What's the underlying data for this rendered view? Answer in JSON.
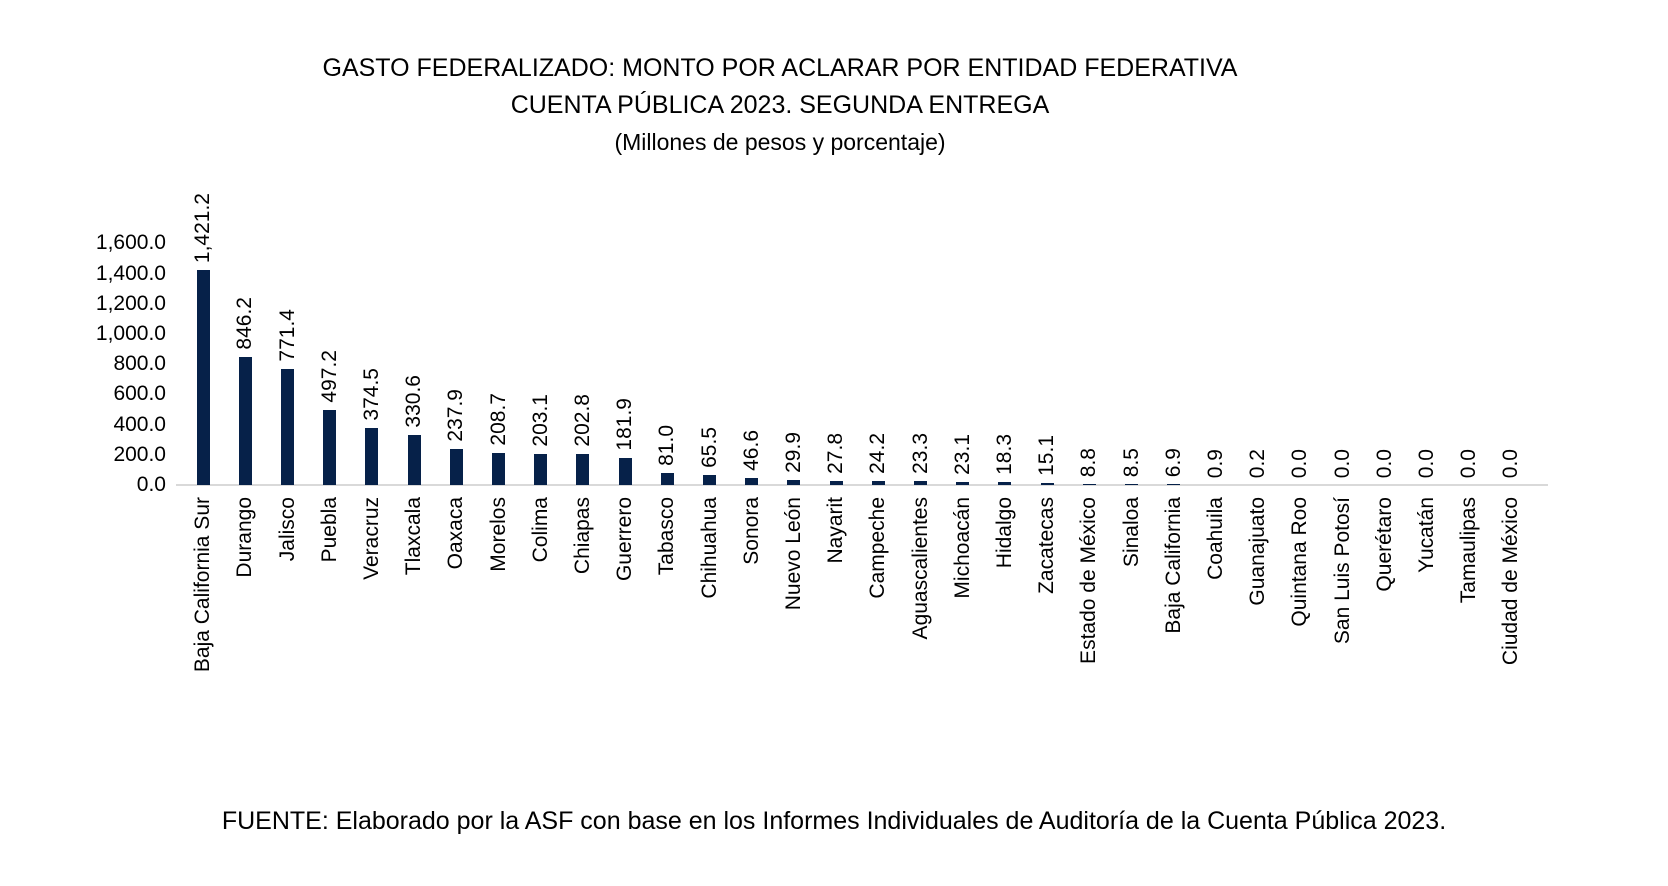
{
  "chart_data": {
    "type": "bar",
    "title": "GASTO FEDERALIZADO: MONTO POR ACLARAR POR ENTIDAD FEDERATIVA",
    "title_line2": "CUENTA PÚBLICA 2023. SEGUNDA ENTREGA",
    "subtitle": "(Millones de pesos y porcentaje)",
    "xlabel": "",
    "ylabel": "",
    "ylim": [
      0,
      1600
    ],
    "grid": false,
    "legend_position": "none",
    "bar_color": "#062149",
    "axis_line_color": "#d9d9d9",
    "text_color": "#000000",
    "y_tick_labels": [
      "1,600.0",
      "1,400.0",
      "1,200.0",
      "1,000.0",
      "800.0",
      "600.0",
      "400.0",
      "200.0",
      "0.0"
    ],
    "y_tick_values": [
      1600,
      1400,
      1200,
      1000,
      800,
      600,
      400,
      200,
      0
    ],
    "categories": [
      "Baja California Sur",
      "Durango",
      "Jalisco",
      "Puebla",
      "Veracruz",
      "Tlaxcala",
      "Oaxaca",
      "Morelos",
      "Colima",
      "Chiapas",
      "Guerrero",
      "Tabasco",
      "Chihuahua",
      "Sonora",
      "Nuevo León",
      "Nayarit",
      "Campeche",
      "Aguascalientes",
      "Michoacán",
      "Hidalgo",
      "Zacatecas",
      "Estado de México",
      "Sinaloa",
      "Baja California",
      "Coahuila",
      "Guanajuato",
      "Quintana Roo",
      "San Luis Potosí",
      "Querétaro",
      "Yucatán",
      "Tamaulipas",
      "Ciudad de México"
    ],
    "values": [
      1421.2,
      846.2,
      771.4,
      497.2,
      374.5,
      330.6,
      237.9,
      208.7,
      203.1,
      202.8,
      181.9,
      81.0,
      65.5,
      46.6,
      29.9,
      27.8,
      24.2,
      23.3,
      23.1,
      18.3,
      15.1,
      8.8,
      8.5,
      6.9,
      0.9,
      0.2,
      0.0,
      0.0,
      0.0,
      0.0,
      0.0,
      0.0
    ],
    "value_labels": [
      "1,421.2",
      "846.2",
      "771.4",
      "497.2",
      "374.5",
      "330.6",
      "237.9",
      "208.7",
      "203.1",
      "202.8",
      "181.9",
      "81.0",
      "65.5",
      "46.6",
      "29.9",
      "27.8",
      "24.2",
      "23.3",
      "23.1",
      "18.3",
      "15.1",
      "8.8",
      "8.5",
      "6.9",
      "0.9",
      "0.2",
      "0.0",
      "0.0",
      "0.0",
      "0.0",
      "0.0",
      "0.0"
    ]
  },
  "footer": {
    "source": "FUENTE: Elaborado por la ASF con base en los Informes Individuales de Auditoría de la Cuenta Pública 2023."
  }
}
